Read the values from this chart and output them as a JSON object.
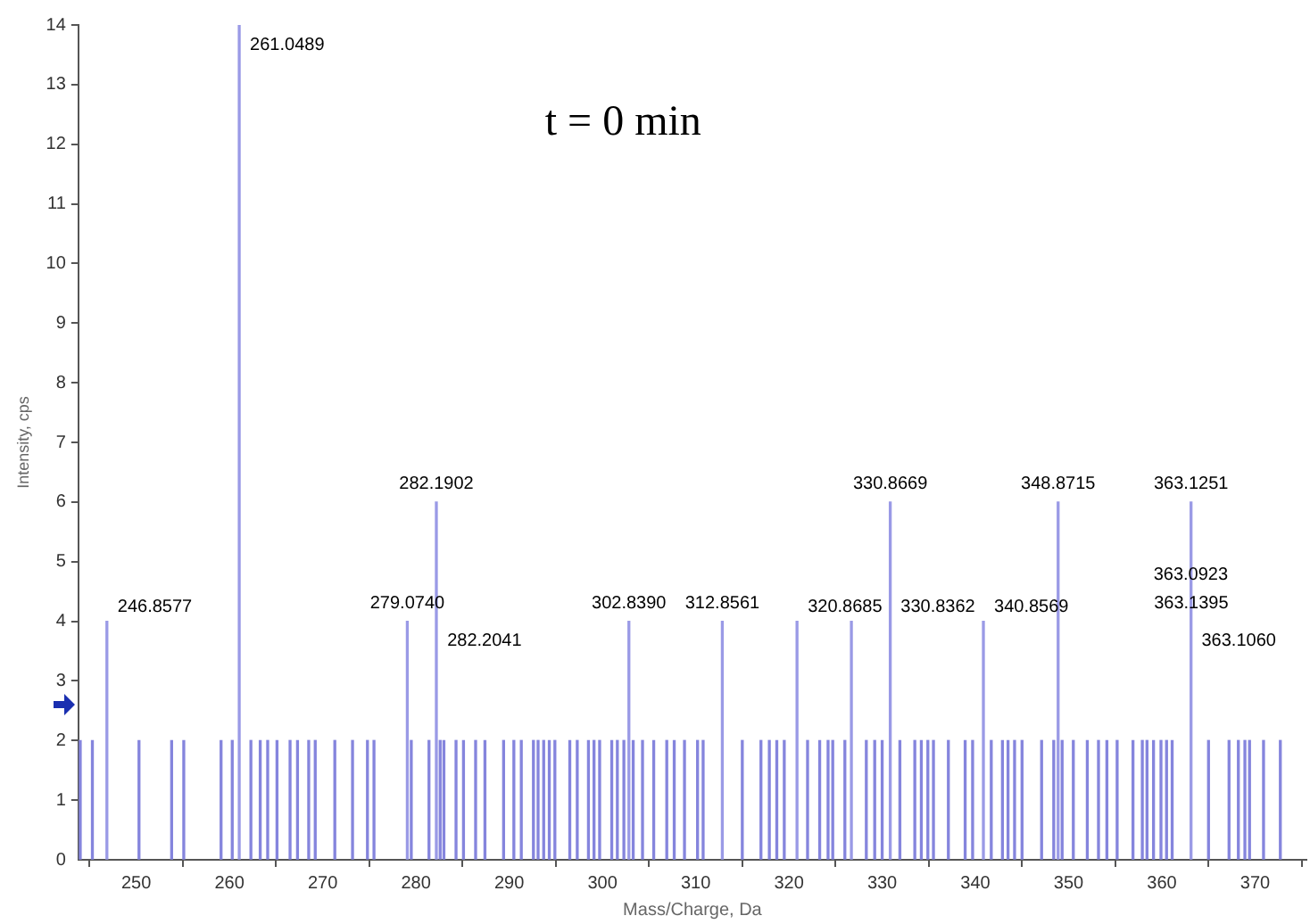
{
  "chart_data": {
    "type": "bar",
    "xlabel": "Mass/Charge, Da",
    "ylabel": "Intensity, cps",
    "annotations": [
      "t = 0 min",
      {
        "text": "246.8577",
        "x": 246.8577,
        "y": 4
      },
      {
        "text": "261.0489",
        "x": 261.0489,
        "y": 14
      },
      {
        "text": "279.0740",
        "x": 279.074,
        "y": 4
      },
      {
        "text": "282.1902",
        "x": 282.1902,
        "y": 6
      },
      {
        "text": "282.2041",
        "x": 282.2041,
        "y": 4
      },
      {
        "text": "302.8390",
        "x": 302.839,
        "y": 4
      },
      {
        "text": "312.8561",
        "x": 312.8561,
        "y": 4
      },
      {
        "text": "320.8685",
        "x": 320.8685,
        "y": 4
      },
      {
        "text": "330.8362",
        "x": 330.8362,
        "y": 4
      },
      {
        "text": "330.8669",
        "x": 330.8669,
        "y": 6
      },
      {
        "text": "340.8569",
        "x": 340.8569,
        "y": 4
      },
      {
        "text": "348.8715",
        "x": 348.8715,
        "y": 6
      },
      {
        "text": "363.1251",
        "x": 363.1251,
        "y": 6
      },
      {
        "text": "363.1395",
        "x": 363.1395,
        "y": 4
      },
      {
        "text": "363.1060",
        "x": 363.106,
        "y": 4
      },
      {
        "text": "363.0923",
        "x": 363.0923,
        "y": 4
      }
    ],
    "series": [
      {
        "color": "#8585dd",
        "x": [
          244.0,
          245.3,
          250.3,
          253.8,
          255.1,
          259.1,
          260.3,
          262.3,
          263.3,
          264.1,
          265.1,
          266.5,
          267.3,
          268.5,
          269.2,
          271.3,
          273.2,
          274.8,
          275.5,
          279.5,
          281.4,
          282.6,
          283.0,
          284.3,
          285.1,
          286.4,
          287.4,
          289.4,
          290.5,
          291.3,
          292.6,
          293.1,
          293.7,
          294.3,
          294.9,
          296.5,
          297.3,
          298.5,
          299.1,
          299.7,
          301.0,
          301.6,
          302.3,
          303.3,
          304.3,
          305.5,
          306.9,
          307.7,
          308.8,
          310.2,
          310.8,
          315.0,
          317.0,
          317.9,
          318.7,
          319.5,
          322.0,
          323.3,
          324.2,
          324.7,
          326.0,
          328.3,
          329.2,
          330.0,
          331.9,
          333.5,
          334.2,
          334.9,
          335.5,
          337.1,
          338.9,
          339.7,
          341.7,
          342.9,
          343.5,
          344.2,
          345.0,
          347.1,
          348.4,
          349.3,
          350.5,
          352.0,
          353.2,
          354.1,
          355.2,
          356.9,
          357.9,
          358.4,
          359.1,
          359.9,
          360.5,
          361.1,
          365.0,
          367.2,
          368.2,
          368.9,
          369.4,
          370.9,
          372.7
        ],
        "values": [
          2,
          2,
          2,
          2,
          2,
          2,
          2,
          2,
          2,
          2,
          2,
          2,
          2,
          2,
          2,
          2,
          2,
          2,
          2,
          2,
          2,
          2,
          2,
          2,
          2,
          2,
          2,
          2,
          2,
          2,
          2,
          2,
          2,
          2,
          2,
          2,
          2,
          2,
          2,
          2,
          2,
          2,
          2,
          2,
          2,
          2,
          2,
          2,
          2,
          2,
          2,
          2,
          2,
          2,
          2,
          2,
          2,
          2,
          2,
          2,
          2,
          2,
          2,
          2,
          2,
          2,
          2,
          2,
          2,
          2,
          2,
          2,
          2,
          2,
          2,
          2,
          2,
          2,
          2,
          2,
          2,
          2,
          2,
          2,
          2,
          2,
          2,
          2,
          2,
          2,
          2,
          2,
          2,
          2,
          2,
          2,
          2,
          2,
          2
        ]
      },
      {
        "color": "#9a9ae6",
        "x": [
          246.8577,
          261.0489,
          279.074,
          282.1902,
          302.839,
          312.8561,
          320.8685,
          326.7,
          330.8669,
          340.8569,
          348.8715,
          363.1251
        ],
        "values": [
          4,
          14,
          4,
          6,
          4,
          4,
          4,
          4,
          6,
          4,
          6,
          6
        ]
      }
    ],
    "xlim": [
      243.8,
      375.5
    ],
    "xticks": [
      250,
      260,
      270,
      280,
      290,
      300,
      310,
      320,
      330,
      340,
      350,
      360,
      370
    ],
    "ylim": [
      0,
      14
    ],
    "yticks": [
      0,
      1,
      2,
      3,
      4,
      5,
      6,
      7,
      8,
      9,
      10,
      11,
      12,
      13,
      14
    ],
    "grid": false,
    "legend": false
  }
}
